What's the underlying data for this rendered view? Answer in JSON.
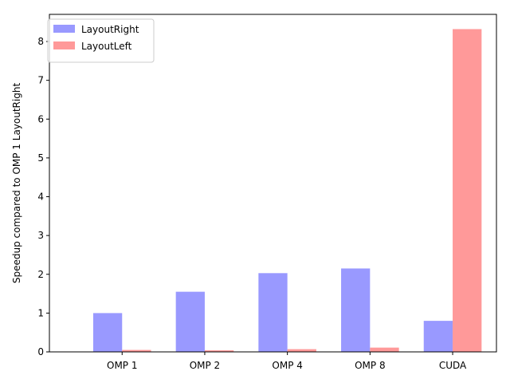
{
  "chart_data": {
    "type": "bar",
    "title": "",
    "xlabel": "",
    "ylabel": "Speedup compared to OMP 1 LayoutRight",
    "categories": [
      "OMP 1",
      "OMP 2",
      "OMP 4",
      "OMP 8",
      "CUDA"
    ],
    "series": [
      {
        "name": "LayoutRight",
        "color": "#9999ff",
        "values": [
          1.0,
          1.55,
          2.03,
          2.15,
          0.8
        ]
      },
      {
        "name": "LayoutLeft",
        "color": "#ff9999",
        "values": [
          0.05,
          0.04,
          0.07,
          0.11,
          8.32
        ]
      }
    ],
    "ylim": [
      0,
      8.7
    ],
    "yticks": [
      0,
      1,
      2,
      3,
      4,
      5,
      6,
      7,
      8
    ],
    "grid": false,
    "legend_position": "top-left"
  }
}
